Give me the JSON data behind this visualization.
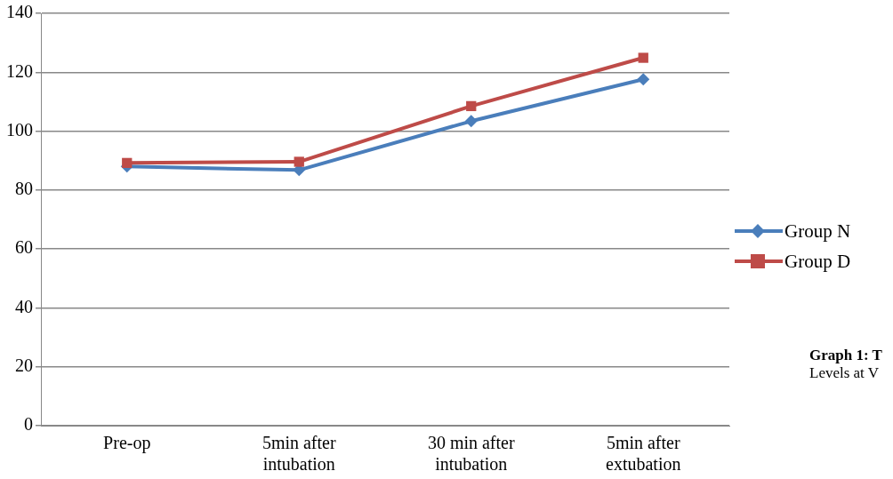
{
  "chart_data": {
    "type": "line",
    "categories": [
      "Pre-op",
      "5min after intubation",
      "30 min after intubation",
      "5min after extubation"
    ],
    "series": [
      {
        "name": "Group N",
        "color": "#4a7ebb",
        "marker": "diamond",
        "values": [
          88.0,
          86.8,
          103.4,
          117.6
        ]
      },
      {
        "name": "Group D",
        "color": "#be4b48",
        "marker": "square",
        "values": [
          89.2,
          89.6,
          108.5,
          124.9
        ]
      }
    ],
    "ylim": [
      0,
      140
    ],
    "yticks": [
      0,
      20,
      40,
      60,
      80,
      100,
      120,
      140
    ],
    "grid": "y",
    "legend": "right",
    "annotations": [
      "Graph 1: T",
      "Levels at V"
    ]
  }
}
